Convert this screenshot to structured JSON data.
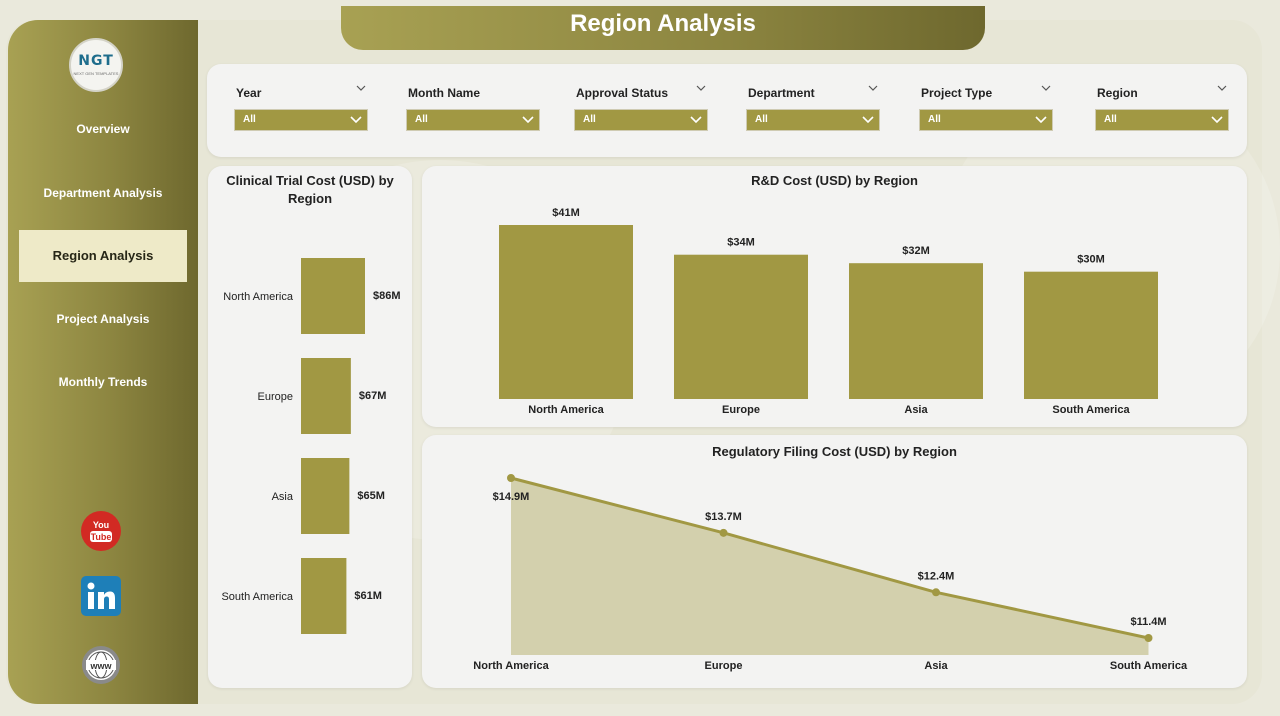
{
  "header": {
    "title": "Region Analysis"
  },
  "logo": {
    "text": "NGT",
    "subtext": "NEXT GEN TEMPLATES"
  },
  "nav": [
    {
      "label": "Overview",
      "active": false
    },
    {
      "label": "Department Analysis",
      "active": false
    },
    {
      "label": "Region Analysis",
      "active": true
    },
    {
      "label": "Project Analysis",
      "active": false
    },
    {
      "label": "Monthly Trends",
      "active": false
    }
  ],
  "social": {
    "youtube_label": "You Tube",
    "youtube_icon": "youtube-icon",
    "linkedin_icon": "linkedin-icon",
    "web_icon": "globe-www-icon",
    "web_label": "www"
  },
  "filters": [
    {
      "label": "Year",
      "value": "All"
    },
    {
      "label": "Month Name",
      "value": "All"
    },
    {
      "label": "Approval Status",
      "value": "All"
    },
    {
      "label": "Department",
      "value": "All"
    },
    {
      "label": "Project Type",
      "value": "All"
    },
    {
      "label": "Region",
      "value": "All"
    }
  ],
  "colors": {
    "accent": "#a19843",
    "bar": "#a19843",
    "area_fill": "#d3d0ad",
    "line": "#a19843",
    "sidebar": "#8c8540"
  },
  "chart_data": [
    {
      "type": "bar",
      "orientation": "horizontal",
      "title": "Clinical Trial Cost (USD) by Region",
      "categories": [
        "North America",
        "Europe",
        "Asia",
        "South America"
      ],
      "values": [
        86,
        67,
        65,
        61
      ],
      "labels": [
        "$86M",
        "$67M",
        "$65M",
        "$61M"
      ],
      "unit": "USD millions"
    },
    {
      "type": "bar",
      "title": "R&D Cost (USD) by Region",
      "categories": [
        "North America",
        "Europe",
        "Asia",
        "South America"
      ],
      "values": [
        41,
        34,
        32,
        30
      ],
      "labels": [
        "$41M",
        "$34M",
        "$32M",
        "$30M"
      ],
      "unit": "USD millions"
    },
    {
      "type": "area",
      "title": "Regulatory Filing Cost (USD) by Region",
      "categories": [
        "North America",
        "Europe",
        "Asia",
        "South America"
      ],
      "values": [
        14.9,
        13.7,
        12.4,
        11.4
      ],
      "labels": [
        "$14.9M",
        "$13.7M",
        "$12.4M",
        "$11.4M"
      ],
      "unit": "USD millions"
    }
  ]
}
